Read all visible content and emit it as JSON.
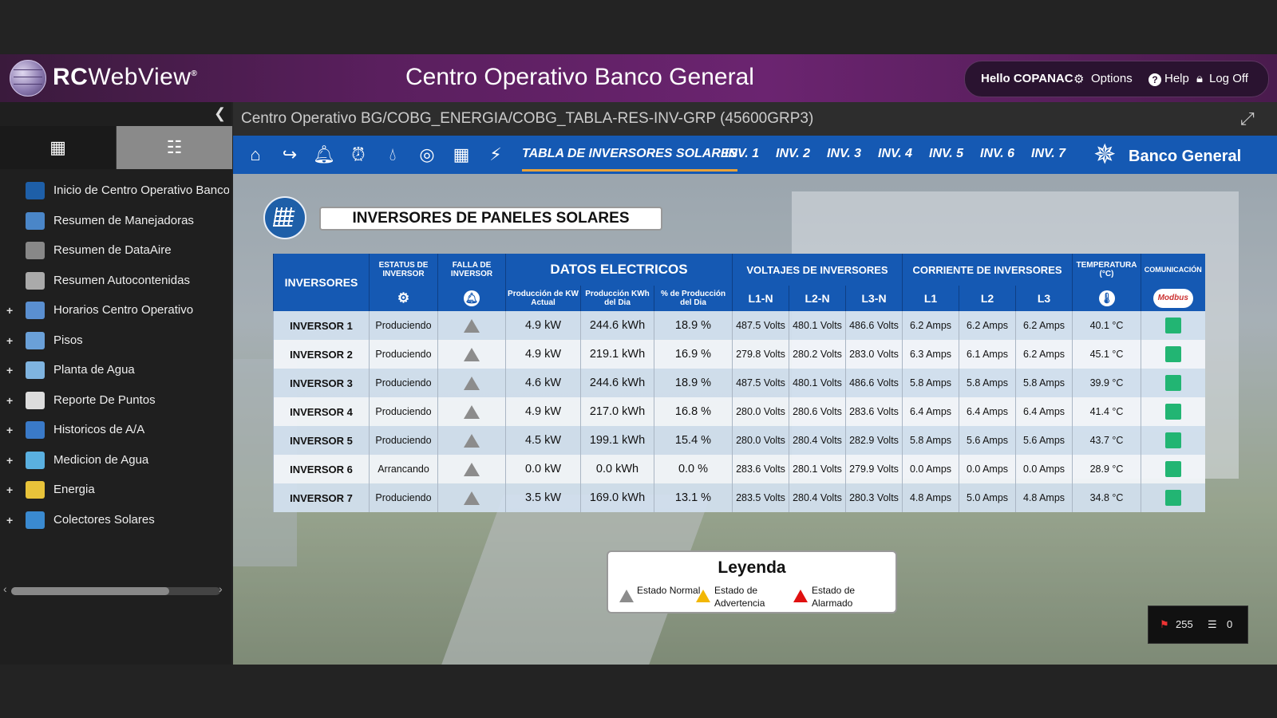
{
  "header": {
    "brand_rc": "RC",
    "brand_web": "WebView",
    "brand_reg": "®",
    "title": "Centro Operativo Banco General",
    "hello": "Hello COPANAC",
    "options": "Options",
    "help": "Help",
    "logoff": "Log Off"
  },
  "sidebar": {
    "items": [
      {
        "label": "Inicio de Centro Operativo Banco General",
        "expandable": false,
        "icon": "star-icon",
        "color": "#1e5fa8"
      },
      {
        "label": "Resumen de Manejadoras",
        "expandable": false,
        "icon": "building-icon",
        "color": "#4a86c8"
      },
      {
        "label": "Resumen de DataAire",
        "expandable": false,
        "icon": "server-icon",
        "color": "#888888"
      },
      {
        "label": "Resumen Autocontenidas",
        "expandable": false,
        "icon": "unit-icon",
        "color": "#aaaaaa"
      },
      {
        "label": "Horarios Centro Operativo",
        "expandable": true,
        "icon": "calendar-icon",
        "color": "#5a8fd0"
      },
      {
        "label": "Pisos",
        "expandable": true,
        "icon": "map-icon",
        "color": "#6aa0d8"
      },
      {
        "label": "Planta de Agua",
        "expandable": true,
        "icon": "water-plant-icon",
        "color": "#7fb4e0"
      },
      {
        "label": "Reporte De Puntos",
        "expandable": true,
        "icon": "report-icon",
        "color": "#dddddd"
      },
      {
        "label": "Historicos de A/A",
        "expandable": true,
        "icon": "bar-chart-icon",
        "color": "#3a7ac8"
      },
      {
        "label": "Medicion de Agua",
        "expandable": true,
        "icon": "water-meter-icon",
        "color": "#5ab0e0"
      },
      {
        "label": "Energia",
        "expandable": true,
        "icon": "energy-icon",
        "color": "#e8c33a"
      },
      {
        "label": "Colectores Solares",
        "expandable": true,
        "icon": "solar-panel-icon",
        "color": "#3a8ad0"
      }
    ]
  },
  "main": {
    "breadcrumb": "Centro Operativo BG/COBG_ENERGIA/COBG_TABLA-RES-INV-GRP (45600GRP3)",
    "tabs": [
      "TABLA DE INVERSORES SOLARES",
      "INV. 1",
      "INV. 2",
      "INV. 3",
      "INV. 4",
      "INV. 5",
      "INV. 6",
      "INV. 7"
    ],
    "bank_name": "Banco General",
    "page_title": "INVERSORES DE PANELES SOLARES"
  },
  "table": {
    "headers": {
      "inversores": "INVERSORES",
      "estatus": "ESTATUS DE INVERSOR",
      "falla": "FALLA DE INVERSOR",
      "datos": "DATOS ELECTRICOS",
      "voltajes": "VOLTAJES DE INVERSORES",
      "corriente": "CORRIENTE DE INVERSORES",
      "temperatura": "TEMPERATURA (°C)",
      "comunicacion": "COMUNICACIÓN",
      "prod_actual": "Producción de KW Actual",
      "prod_dia": "Producción KWh del Dia",
      "pct_dia": "% de Producción del Dia",
      "l1n": "L1-N",
      "l2n": "L2-N",
      "l3n": "L3-N",
      "l1": "L1",
      "l2": "L2",
      "l3": "L3",
      "modbus": "Modbus"
    },
    "rows": [
      {
        "name": "INVERSOR 1",
        "status": "Produciendo",
        "kw": "4.9 kW",
        "kwh": "244.6 kWh",
        "pct": "18.9 %",
        "v1": "487.5 Volts",
        "v2": "480.1 Volts",
        "v3": "486.6 Volts",
        "a1": "6.2 Amps",
        "a2": "6.2 Amps",
        "a3": "6.2 Amps",
        "temp": "40.1 °C"
      },
      {
        "name": "INVERSOR 2",
        "status": "Produciendo",
        "kw": "4.9 kW",
        "kwh": "219.1 kWh",
        "pct": "16.9 %",
        "v1": "279.8 Volts",
        "v2": "280.2 Volts",
        "v3": "283.0 Volts",
        "a1": "6.3 Amps",
        "a2": "6.1 Amps",
        "a3": "6.2 Amps",
        "temp": "45.1 °C"
      },
      {
        "name": "INVERSOR 3",
        "status": "Produciendo",
        "kw": "4.6 kW",
        "kwh": "244.6 kWh",
        "pct": "18.9 %",
        "v1": "487.5 Volts",
        "v2": "480.1 Volts",
        "v3": "486.6 Volts",
        "a1": "5.8 Amps",
        "a2": "5.8 Amps",
        "a3": "5.8 Amps",
        "temp": "39.9 °C"
      },
      {
        "name": "INVERSOR 4",
        "status": "Produciendo",
        "kw": "4.9 kW",
        "kwh": "217.0 kWh",
        "pct": "16.8 %",
        "v1": "280.0 Volts",
        "v2": "280.6 Volts",
        "v3": "283.6 Volts",
        "a1": "6.4 Amps",
        "a2": "6.4 Amps",
        "a3": "6.4 Amps",
        "temp": "41.4 °C"
      },
      {
        "name": "INVERSOR 5",
        "status": "Produciendo",
        "kw": "4.5 kW",
        "kwh": "199.1 kWh",
        "pct": "15.4 %",
        "v1": "280.0 Volts",
        "v2": "280.4 Volts",
        "v3": "282.9 Volts",
        "a1": "5.8 Amps",
        "a2": "5.6 Amps",
        "a3": "5.6 Amps",
        "temp": "43.7 °C"
      },
      {
        "name": "INVERSOR 6",
        "status": "Arrancando",
        "kw": "0.0 kW",
        "kwh": "0.0 kWh",
        "pct": "0.0 %",
        "v1": "283.6 Volts",
        "v2": "280.1 Volts",
        "v3": "279.9 Volts",
        "a1": "0.0 Amps",
        "a2": "0.0 Amps",
        "a3": "0.0 Amps",
        "temp": "28.9 °C"
      },
      {
        "name": "INVERSOR 7",
        "status": "Produciendo",
        "kw": "3.5 kW",
        "kwh": "169.0 kWh",
        "pct": "13.1 %",
        "v1": "283.5 Volts",
        "v2": "280.4 Volts",
        "v3": "280.3 Volts",
        "a1": "4.8 Amps",
        "a2": "5.0 Amps",
        "a3": "4.8 Amps",
        "temp": "34.8 °C"
      }
    ]
  },
  "legend": {
    "title": "Leyenda",
    "items": [
      {
        "label": "Estado Normal",
        "color": "#8c8c8c"
      },
      {
        "label": "Estado de Advertencia",
        "color": "#f2b705"
      },
      {
        "label": "Estado de Alarmado",
        "color": "#e01010"
      }
    ]
  },
  "status": {
    "alarms": "255",
    "events": "0"
  },
  "colors": {
    "nav_blue": "#1559b3",
    "header_purple": "#6b2470",
    "comm_ok": "#22b573",
    "active_tab_underline": "#e8a23a"
  }
}
